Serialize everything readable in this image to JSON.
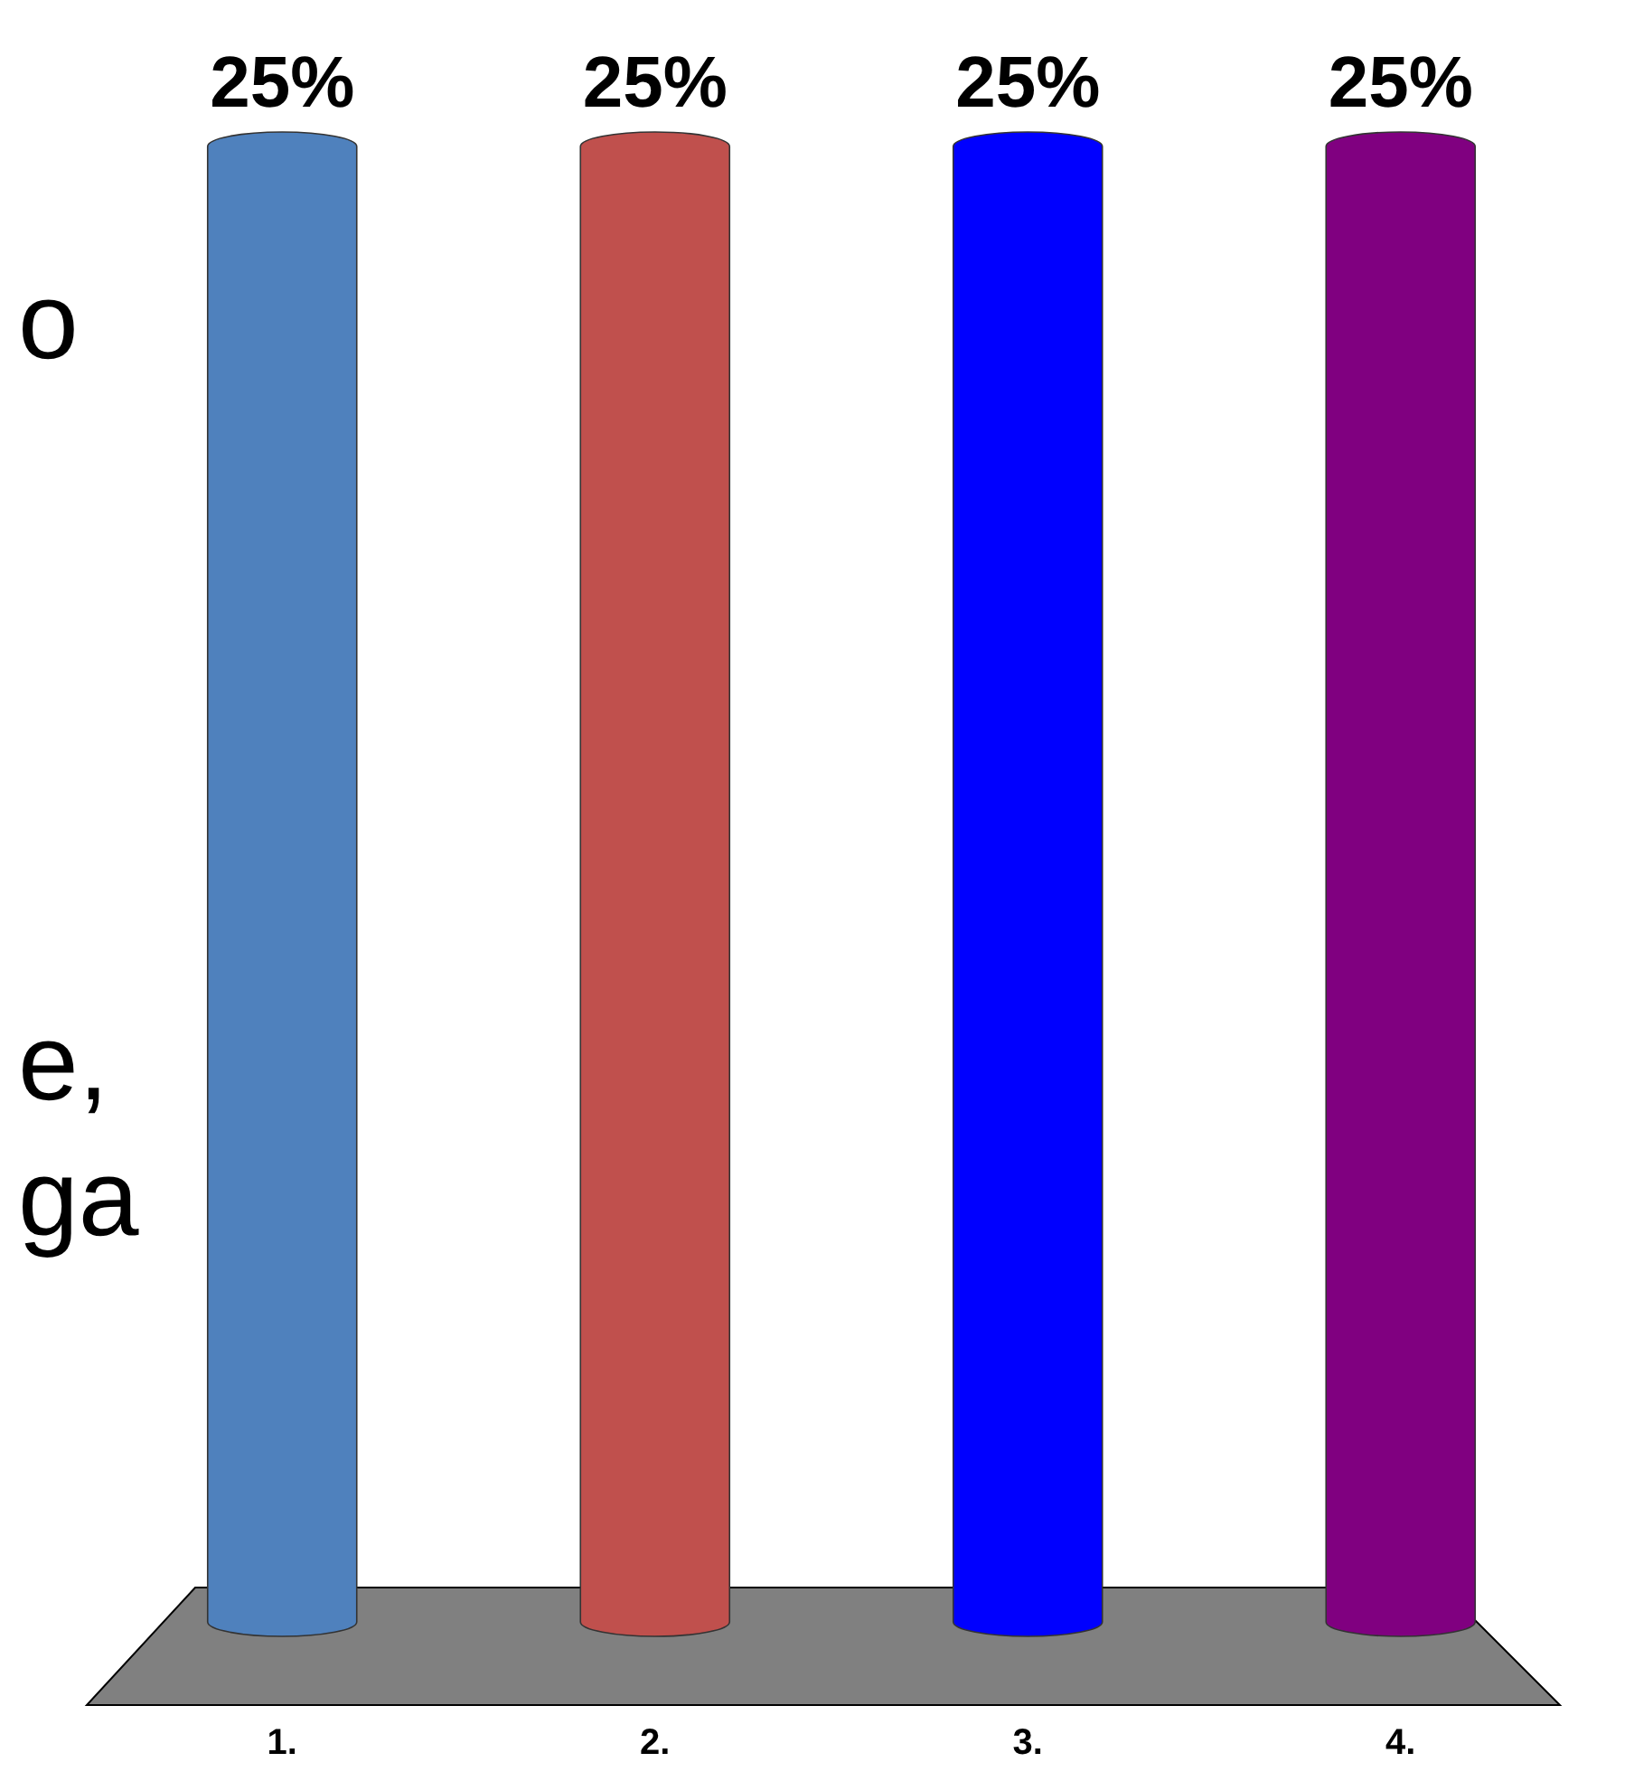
{
  "chart_data": {
    "type": "bar",
    "categories": [
      "1.",
      "2.",
      "3.",
      "4."
    ],
    "values": [
      25,
      25,
      25,
      25
    ],
    "colors": [
      "#4f81bd",
      "#c0504d",
      "#0000ff",
      "#800080"
    ],
    "value_labels": [
      "25%",
      "25%",
      "25%",
      "25%"
    ],
    "annotations": [
      "o",
      "e,",
      "ga"
    ]
  }
}
